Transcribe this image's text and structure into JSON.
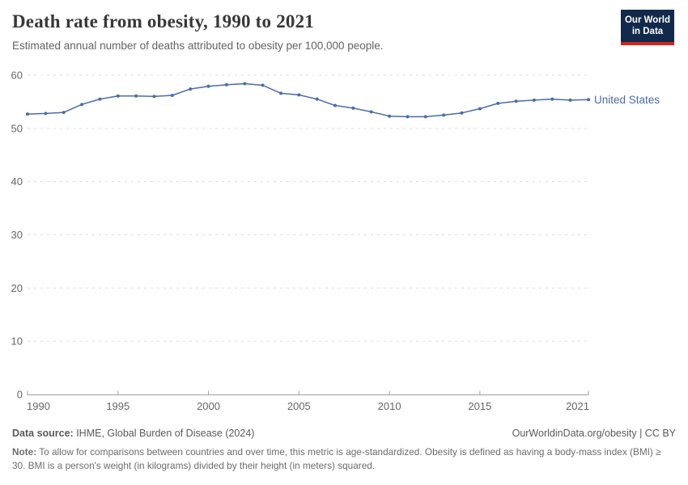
{
  "header": {
    "title": "Death rate from obesity, 1990 to 2021",
    "subtitle": "Estimated annual number of deaths attributed to obesity per 100,000 people.",
    "logo": {
      "line1": "Our World",
      "line2": "in Data",
      "bg_color": "#12294B",
      "stripe_color": "#CE261E"
    }
  },
  "chart_data": {
    "type": "line",
    "title": "Death rate from obesity, 1990 to 2021",
    "xlabel": "",
    "ylabel": "",
    "ylim": [
      0,
      60
    ],
    "yticks": [
      0,
      10,
      20,
      30,
      40,
      50,
      60
    ],
    "xticks": [
      1990,
      1995,
      2000,
      2005,
      2010,
      2015,
      2021
    ],
    "xlim": [
      1990,
      2021
    ],
    "grid": "horizontal-dashed",
    "legend_position": "end-of-line",
    "x": [
      1990,
      1991,
      1992,
      1993,
      1994,
      1995,
      1996,
      1997,
      1998,
      1999,
      2000,
      2001,
      2002,
      2003,
      2004,
      2005,
      2006,
      2007,
      2008,
      2009,
      2010,
      2011,
      2012,
      2013,
      2014,
      2015,
      2016,
      2017,
      2018,
      2019,
      2020,
      2021
    ],
    "series": [
      {
        "name": "United States",
        "color": "#4C6BA8",
        "values": [
          52.7,
          52.8,
          53.0,
          54.5,
          55.5,
          56.1,
          56.1,
          56.0,
          56.2,
          57.4,
          57.9,
          58.2,
          58.4,
          58.1,
          56.6,
          56.3,
          55.5,
          54.3,
          53.8,
          53.1,
          52.3,
          52.2,
          52.2,
          52.5,
          52.9,
          53.7,
          54.7,
          55.1,
          55.3,
          55.5,
          55.3,
          55.4
        ]
      }
    ],
    "colors": {
      "gridline": "#dcdcdc",
      "axis": "#a0a0a0",
      "tick_label": "#666666"
    }
  },
  "footer": {
    "source_label": "Data source:",
    "source_text": " IHME, Global Burden of Disease (2024)",
    "link_text": "OurWorldinData.org/obesity | CC BY",
    "note_label": "Note:",
    "note_text": " To allow for comparisons between countries and over time, this metric is age-standardized. Obesity is defined as having a body-mass index (BMI) ≥ 30. BMI is a person's weight (in kilograms) divided by their height (in meters) squared."
  }
}
